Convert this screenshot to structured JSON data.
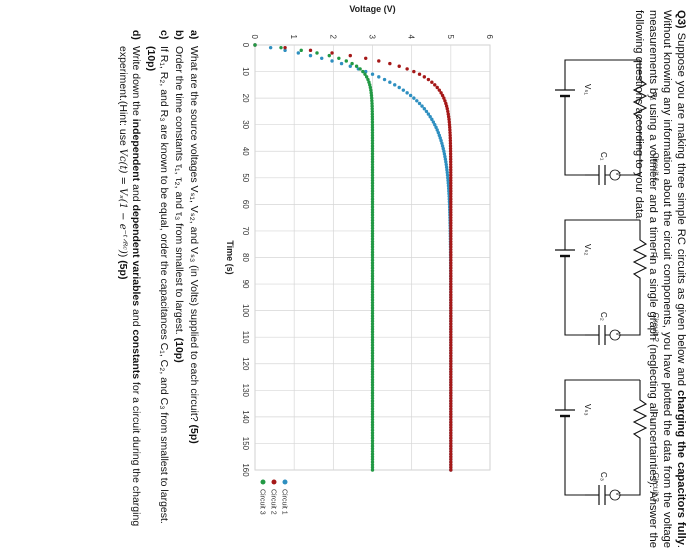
{
  "intro": {
    "label": "Q3)",
    "part1": "Suppose you are making three simple RC circuits as given below and",
    "bold1": "charging the capacitors fully",
    "part2": ". Without knowing any information about the circuit components, you have plotted the data from the voltage measurements by using a voltmeter and a timer in a single graph (neglecting all uncertainties). Answer the following questions according to your data."
  },
  "circuits": [
    {
      "title": "Circuit 1",
      "resistor": "R₁",
      "source": "Vₛ₁",
      "capacitor": "C₁",
      "meter": "V"
    },
    {
      "title": "Circuit 2",
      "resistor": "R₂",
      "source": "Vₛ₂",
      "capacitor": "C₂",
      "meter": "V"
    },
    {
      "title": "Circuit 3",
      "resistor": "R₃",
      "source": "Vₛ₃",
      "capacitor": "C₃",
      "meter": "V"
    }
  ],
  "chart_data": {
    "type": "scatter",
    "ylabel": "Voltage (V)",
    "xlabel": "Time (s)",
    "xlim": [
      0,
      160
    ],
    "ylim": [
      0,
      6
    ],
    "xticks": [
      0,
      10,
      20,
      30,
      40,
      50,
      60,
      70,
      80,
      90,
      100,
      110,
      120,
      130,
      140,
      150,
      160
    ],
    "yticks": [
      0,
      1,
      2,
      3,
      4,
      5,
      6
    ],
    "grid": true,
    "legend_position": "bottom-right",
    "x_step": 1,
    "series": [
      {
        "name": "Circuit 1",
        "color": "#2e8fc0",
        "vmax": 5.0,
        "tau": 12.0
      },
      {
        "name": "Circuit 2",
        "color": "#a51818",
        "vmax": 5.0,
        "tau": 6.0
      },
      {
        "name": "Circuit 3",
        "color": "#229944",
        "vmax": 3.0,
        "tau": 4.0
      }
    ]
  },
  "questions": [
    {
      "letter": "a)",
      "text": "What are the source voltages Vₛ₁, Vₛ₂, and Vₛ₃ (in Volts) supplied to each circuit?",
      "points": "(5p)"
    },
    {
      "letter": "b)",
      "text": "Order the time constants τ₁, τ₂, and τ₃ from smallest to largest.",
      "points": "(10p)"
    },
    {
      "letter": "c)",
      "text": "If R₁, R₂, and R₃ are known to be equal, order the capacitances C₁, C₂, and C₃ from smallest to largest.",
      "points": "(10p)"
    },
    {
      "letter": "d)",
      "text_a": "Write down the",
      "bold_a": "independent",
      "text_b": "and",
      "bold_b": "dependent variables",
      "text_c": "and",
      "bold_c": "constants",
      "text_d": "for a circuit during the charging experiment.(Hint: use",
      "formula": "Vᴄ(t) = Vₛ(1 − e⁻ᵗᐟᴿᶜ)",
      "text_e": ")",
      "points": "(5p)"
    }
  ]
}
